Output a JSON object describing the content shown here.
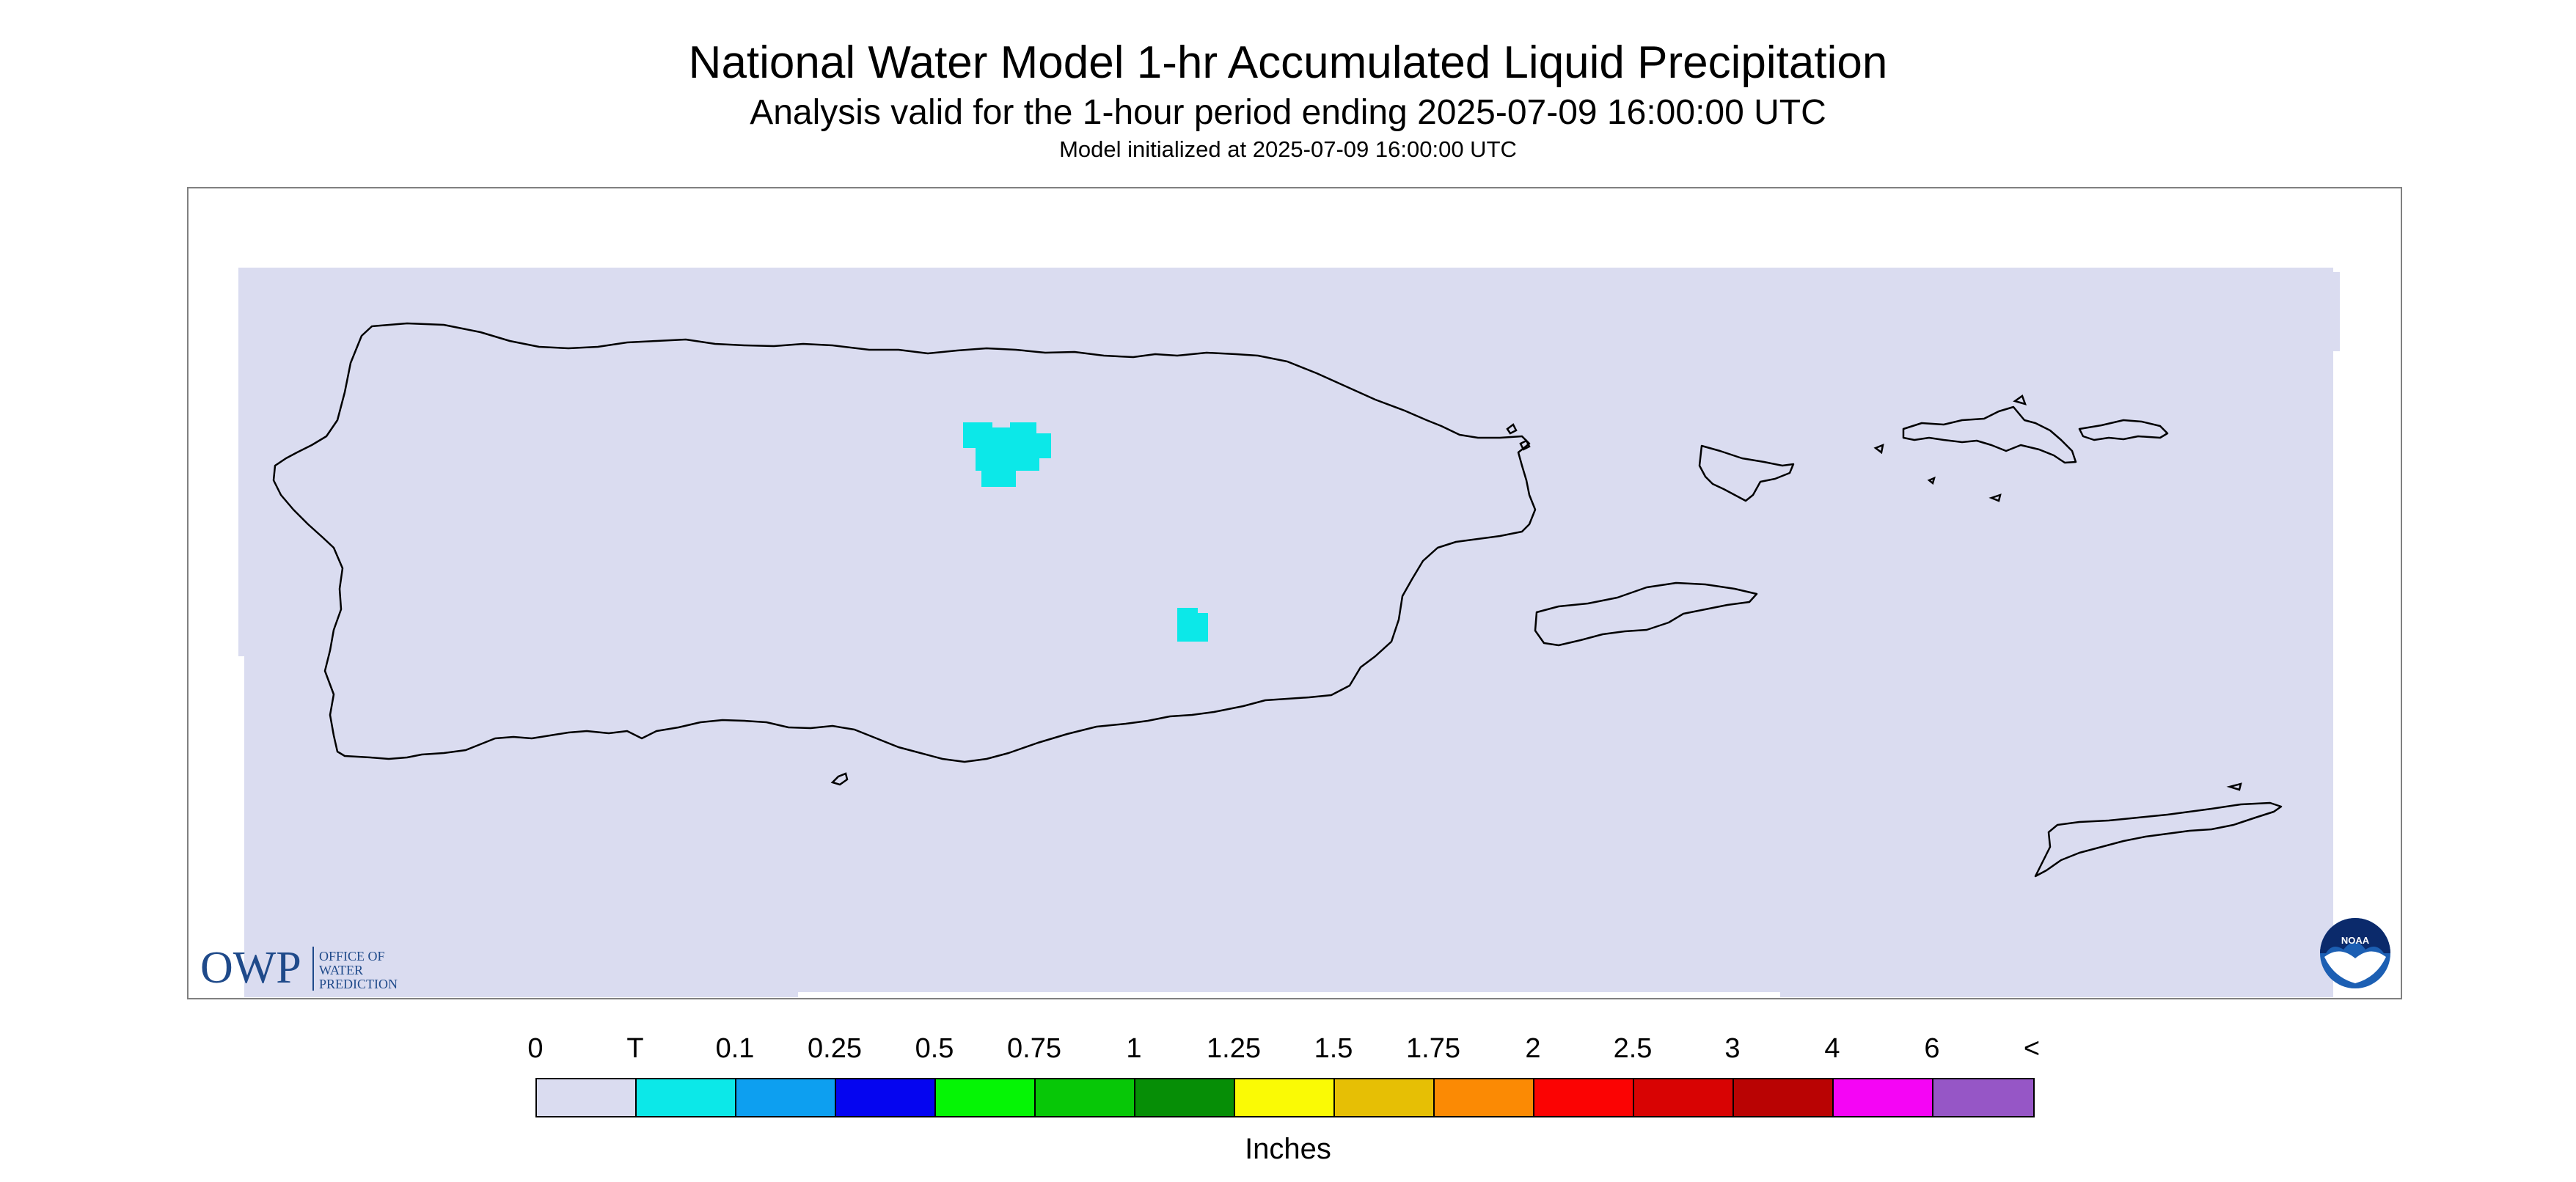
{
  "title": "National Water Model 1-hr Accumulated Liquid Precipitation",
  "subtitle": "Analysis valid for the 1-hour period ending 2025-07-09 16:00:00 UTC",
  "initialized": "Model initialized at 2025-07-09 16:00:00 UTC",
  "owp_logo": {
    "letters": "OWP",
    "line1": "OFFICE OF",
    "line2": "WATER",
    "line3": "PREDICTION",
    "color": "#1f4a8a"
  },
  "noaa_logo": {
    "text": "NOAA",
    "color": "#1c5fb3"
  },
  "legend": {
    "units": "Inches",
    "labels": [
      "0",
      "T",
      "0.1",
      "0.25",
      "0.5",
      "0.75",
      "1",
      "1.25",
      "1.5",
      "1.75",
      "2",
      "2.5",
      "3",
      "4",
      "6",
      "<"
    ],
    "colors": [
      "#dadcf0",
      "#0ce8e8",
      "#0d9ff0",
      "#0505f0",
      "#05f505",
      "#07c707",
      "#068e06",
      "#fafa05",
      "#e6bf05",
      "#fb8a04",
      "#fb0303",
      "#d80303",
      "#b90303",
      "#f505f5",
      "#9656c6"
    ]
  },
  "map_colors": {
    "background": "#dadcf0",
    "precip_trace": "#0ce8e8",
    "coastline": "#000000",
    "frame": "#808080"
  }
}
